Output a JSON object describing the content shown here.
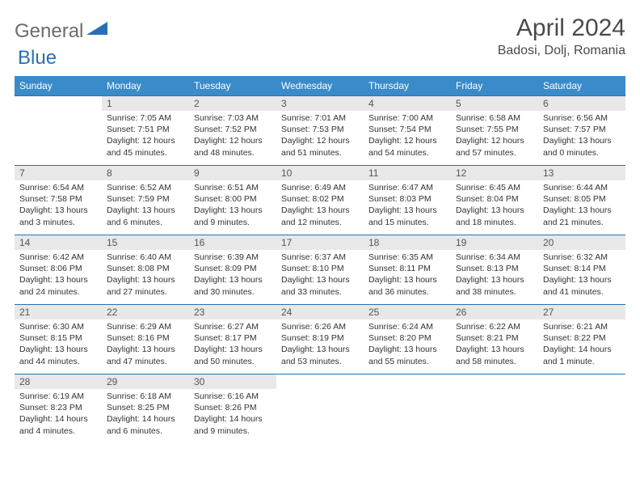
{
  "logo": {
    "part1": "General",
    "part2": "Blue"
  },
  "title": "April 2024",
  "location": "Badosi, Dolj, Romania",
  "colors": {
    "header_bg": "#3a8bc9",
    "header_text": "#ffffff",
    "daynum_bg": "#e8e8e8",
    "border": "#2a6fb5",
    "logo_blue": "#2a6fb5",
    "logo_gray": "#6b6b6b",
    "body_bg": "#ffffff",
    "text": "#333333"
  },
  "weekdays": [
    "Sunday",
    "Monday",
    "Tuesday",
    "Wednesday",
    "Thursday",
    "Friday",
    "Saturday"
  ],
  "weeks": [
    [
      null,
      {
        "n": "1",
        "sunrise": "7:05 AM",
        "sunset": "7:51 PM",
        "daylight": "12 hours and 45 minutes."
      },
      {
        "n": "2",
        "sunrise": "7:03 AM",
        "sunset": "7:52 PM",
        "daylight": "12 hours and 48 minutes."
      },
      {
        "n": "3",
        "sunrise": "7:01 AM",
        "sunset": "7:53 PM",
        "daylight": "12 hours and 51 minutes."
      },
      {
        "n": "4",
        "sunrise": "7:00 AM",
        "sunset": "7:54 PM",
        "daylight": "12 hours and 54 minutes."
      },
      {
        "n": "5",
        "sunrise": "6:58 AM",
        "sunset": "7:55 PM",
        "daylight": "12 hours and 57 minutes."
      },
      {
        "n": "6",
        "sunrise": "6:56 AM",
        "sunset": "7:57 PM",
        "daylight": "13 hours and 0 minutes."
      }
    ],
    [
      {
        "n": "7",
        "sunrise": "6:54 AM",
        "sunset": "7:58 PM",
        "daylight": "13 hours and 3 minutes."
      },
      {
        "n": "8",
        "sunrise": "6:52 AM",
        "sunset": "7:59 PM",
        "daylight": "13 hours and 6 minutes."
      },
      {
        "n": "9",
        "sunrise": "6:51 AM",
        "sunset": "8:00 PM",
        "daylight": "13 hours and 9 minutes."
      },
      {
        "n": "10",
        "sunrise": "6:49 AM",
        "sunset": "8:02 PM",
        "daylight": "13 hours and 12 minutes."
      },
      {
        "n": "11",
        "sunrise": "6:47 AM",
        "sunset": "8:03 PM",
        "daylight": "13 hours and 15 minutes."
      },
      {
        "n": "12",
        "sunrise": "6:45 AM",
        "sunset": "8:04 PM",
        "daylight": "13 hours and 18 minutes."
      },
      {
        "n": "13",
        "sunrise": "6:44 AM",
        "sunset": "8:05 PM",
        "daylight": "13 hours and 21 minutes."
      }
    ],
    [
      {
        "n": "14",
        "sunrise": "6:42 AM",
        "sunset": "8:06 PM",
        "daylight": "13 hours and 24 minutes."
      },
      {
        "n": "15",
        "sunrise": "6:40 AM",
        "sunset": "8:08 PM",
        "daylight": "13 hours and 27 minutes."
      },
      {
        "n": "16",
        "sunrise": "6:39 AM",
        "sunset": "8:09 PM",
        "daylight": "13 hours and 30 minutes."
      },
      {
        "n": "17",
        "sunrise": "6:37 AM",
        "sunset": "8:10 PM",
        "daylight": "13 hours and 33 minutes."
      },
      {
        "n": "18",
        "sunrise": "6:35 AM",
        "sunset": "8:11 PM",
        "daylight": "13 hours and 36 minutes."
      },
      {
        "n": "19",
        "sunrise": "6:34 AM",
        "sunset": "8:13 PM",
        "daylight": "13 hours and 38 minutes."
      },
      {
        "n": "20",
        "sunrise": "6:32 AM",
        "sunset": "8:14 PM",
        "daylight": "13 hours and 41 minutes."
      }
    ],
    [
      {
        "n": "21",
        "sunrise": "6:30 AM",
        "sunset": "8:15 PM",
        "daylight": "13 hours and 44 minutes."
      },
      {
        "n": "22",
        "sunrise": "6:29 AM",
        "sunset": "8:16 PM",
        "daylight": "13 hours and 47 minutes."
      },
      {
        "n": "23",
        "sunrise": "6:27 AM",
        "sunset": "8:17 PM",
        "daylight": "13 hours and 50 minutes."
      },
      {
        "n": "24",
        "sunrise": "6:26 AM",
        "sunset": "8:19 PM",
        "daylight": "13 hours and 53 minutes."
      },
      {
        "n": "25",
        "sunrise": "6:24 AM",
        "sunset": "8:20 PM",
        "daylight": "13 hours and 55 minutes."
      },
      {
        "n": "26",
        "sunrise": "6:22 AM",
        "sunset": "8:21 PM",
        "daylight": "13 hours and 58 minutes."
      },
      {
        "n": "27",
        "sunrise": "6:21 AM",
        "sunset": "8:22 PM",
        "daylight": "14 hours and 1 minute."
      }
    ],
    [
      {
        "n": "28",
        "sunrise": "6:19 AM",
        "sunset": "8:23 PM",
        "daylight": "14 hours and 4 minutes."
      },
      {
        "n": "29",
        "sunrise": "6:18 AM",
        "sunset": "8:25 PM",
        "daylight": "14 hours and 6 minutes."
      },
      {
        "n": "30",
        "sunrise": "6:16 AM",
        "sunset": "8:26 PM",
        "daylight": "14 hours and 9 minutes."
      },
      null,
      null,
      null,
      null
    ]
  ],
  "labels": {
    "sunrise": "Sunrise:",
    "sunset": "Sunset:",
    "daylight": "Daylight:"
  }
}
